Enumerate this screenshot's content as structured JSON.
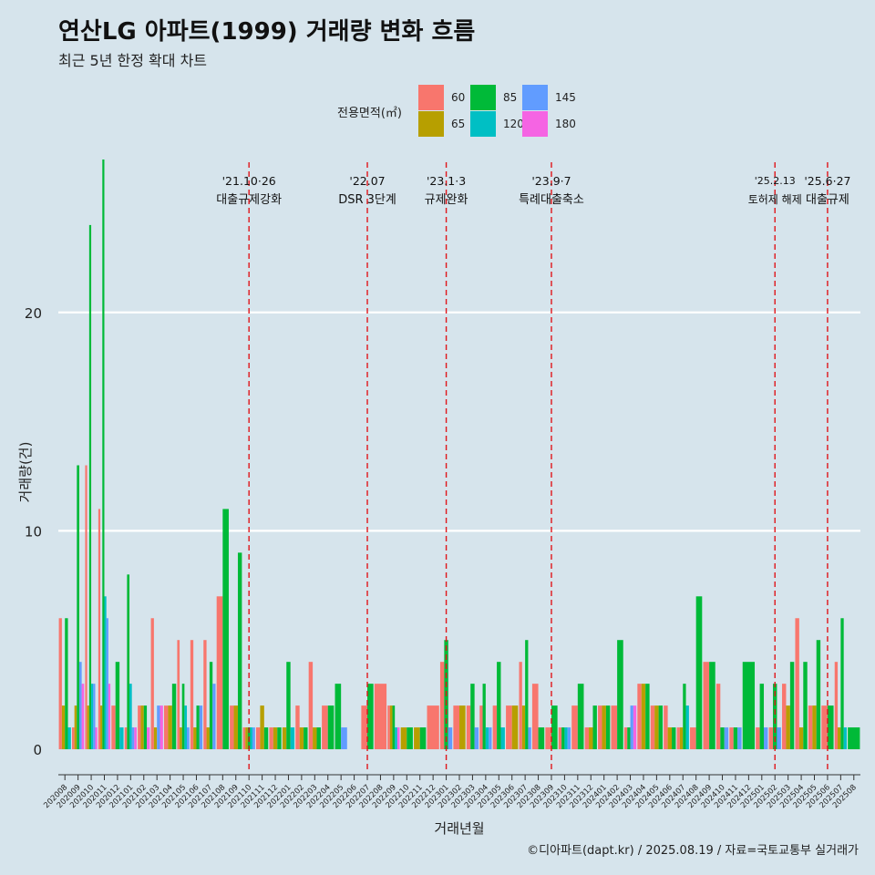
{
  "header": {
    "title": "연산LG 아파트(1999) 거래량 변화 흐름",
    "subtitle": "최근 5년 한정 확대 차트"
  },
  "caption": "©디아파트(dapt.kr) / 2025.08.19 / 자료=국토교통부 실거래가",
  "chart_data": {
    "type": "bar",
    "xlabel": "거래년월",
    "ylabel": "거래량(건)",
    "ylim": [
      -1,
      27
    ],
    "yticks": [
      0,
      10,
      20
    ],
    "grid": "horizontal",
    "legend": {
      "title": "전용면적(㎡)",
      "placement": "top",
      "entries": [
        {
          "name": "60",
          "color": "#F8766D"
        },
        {
          "name": "65",
          "color": "#B79F00"
        },
        {
          "name": "85",
          "color": "#00BA38"
        },
        {
          "name": "120",
          "color": "#00BFC4"
        },
        {
          "name": "145",
          "color": "#619CFF"
        },
        {
          "name": "180",
          "color": "#F564E3"
        }
      ]
    },
    "months": [
      "202008",
      "202009",
      "202010",
      "202011",
      "202012",
      "202101",
      "202102",
      "202103",
      "202104",
      "202105",
      "202106",
      "202107",
      "202108",
      "202109",
      "202110",
      "202111",
      "202112",
      "202201",
      "202202",
      "202203",
      "202204",
      "202205",
      "202206",
      "202207",
      "202208",
      "202209",
      "202210",
      "202211",
      "202212",
      "202301",
      "202302",
      "202303",
      "202304",
      "202305",
      "202306",
      "202307",
      "202308",
      "202309",
      "202310",
      "202311",
      "202312",
      "202401",
      "202402",
      "202403",
      "202404",
      "202405",
      "202406",
      "202407",
      "202408",
      "202409",
      "202410",
      "202411",
      "202412",
      "202501",
      "202502",
      "202503",
      "202504",
      "202505",
      "202506",
      "202507",
      "202508"
    ],
    "series": [
      {
        "name": "60",
        "values": [
          6,
          1,
          13,
          11,
          2,
          1,
          2,
          6,
          2,
          5,
          5,
          5,
          7,
          2,
          1,
          1,
          1,
          0,
          2,
          4,
          2,
          0,
          0,
          2,
          3,
          2,
          0,
          0,
          2,
          4,
          2,
          2,
          2,
          2,
          2,
          4,
          3,
          1,
          1,
          2,
          1,
          2,
          2,
          1,
          3,
          2,
          2,
          1,
          1,
          4,
          3,
          1,
          0,
          1,
          1,
          3,
          6,
          2,
          2,
          4,
          0
        ]
      },
      {
        "name": "65",
        "values": [
          2,
          2,
          2,
          2,
          0,
          0,
          2,
          1,
          2,
          1,
          1,
          1,
          0,
          2,
          1,
          2,
          1,
          1,
          1,
          1,
          0,
          0,
          0,
          0,
          0,
          2,
          1,
          1,
          0,
          0,
          2,
          0,
          0,
          0,
          2,
          2,
          0,
          0,
          0,
          0,
          1,
          2,
          0,
          0,
          3,
          2,
          1,
          1,
          0,
          0,
          0,
          0,
          0,
          0,
          0,
          2,
          1,
          2,
          0,
          1,
          0
        ]
      },
      {
        "name": "85",
        "values": [
          6,
          13,
          24,
          27,
          4,
          8,
          2,
          0,
          3,
          3,
          2,
          4,
          11,
          9,
          1,
          1,
          1,
          4,
          1,
          1,
          2,
          3,
          0,
          3,
          0,
          2,
          1,
          1,
          0,
          5,
          0,
          3,
          3,
          4,
          0,
          5,
          1,
          2,
          1,
          3,
          2,
          2,
          5,
          1,
          3,
          2,
          1,
          3,
          7,
          4,
          1,
          1,
          4,
          3,
          3,
          4,
          4,
          5,
          2,
          6,
          1
        ]
      },
      {
        "name": "120",
        "values": [
          1,
          0,
          3,
          7,
          1,
          3,
          0,
          0,
          0,
          2,
          0,
          0,
          0,
          0,
          1,
          0,
          0,
          1,
          0,
          0,
          0,
          0,
          0,
          0,
          0,
          1,
          0,
          0,
          0,
          0,
          0,
          0,
          1,
          1,
          0,
          0,
          0,
          0,
          1,
          0,
          0,
          0,
          0,
          0,
          0,
          0,
          0,
          2,
          0,
          0,
          0,
          0,
          0,
          0,
          0,
          0,
          0,
          0,
          0,
          1,
          0
        ]
      },
      {
        "name": "145",
        "values": [
          0,
          4,
          3,
          6,
          0,
          1,
          0,
          2,
          0,
          1,
          2,
          3,
          0,
          0,
          1,
          0,
          0,
          0,
          0,
          0,
          0,
          1,
          0,
          0,
          0,
          0,
          0,
          0,
          0,
          1,
          0,
          1,
          1,
          0,
          0,
          1,
          0,
          0,
          1,
          0,
          0,
          0,
          0,
          2,
          0,
          0,
          0,
          0,
          0,
          0,
          1,
          1,
          0,
          1,
          1,
          0,
          0,
          0,
          0,
          0,
          0
        ]
      },
      {
        "name": "180",
        "values": [
          0,
          3,
          1,
          3,
          0,
          1,
          1,
          2,
          0,
          0,
          0,
          0,
          0,
          0,
          0,
          0,
          0,
          0,
          0,
          0,
          0,
          0,
          0,
          0,
          0,
          1,
          0,
          0,
          0,
          0,
          0,
          0,
          0,
          0,
          0,
          0,
          0,
          0,
          0,
          0,
          0,
          0,
          0,
          2,
          0,
          0,
          0,
          0,
          0,
          0,
          0,
          0,
          0,
          0,
          0,
          0,
          0,
          0,
          0,
          0,
          0
        ]
      }
    ],
    "annotations": [
      {
        "month": "202110",
        "date": "'21.10·26",
        "label": "대출규제강화"
      },
      {
        "month": "202207",
        "date": "'22.07",
        "label": "DSR 3단계"
      },
      {
        "month": "202301",
        "date": "'23.1·3",
        "label": "규제완화"
      },
      {
        "month": "202309",
        "date": "'23.9·7",
        "label": "특례대출축소"
      },
      {
        "month": "202502",
        "date": "'25.2.13",
        "label": "토허제 해제"
      },
      {
        "month": "202506",
        "date": "'25.6·27",
        "label": "대출규제"
      }
    ]
  }
}
